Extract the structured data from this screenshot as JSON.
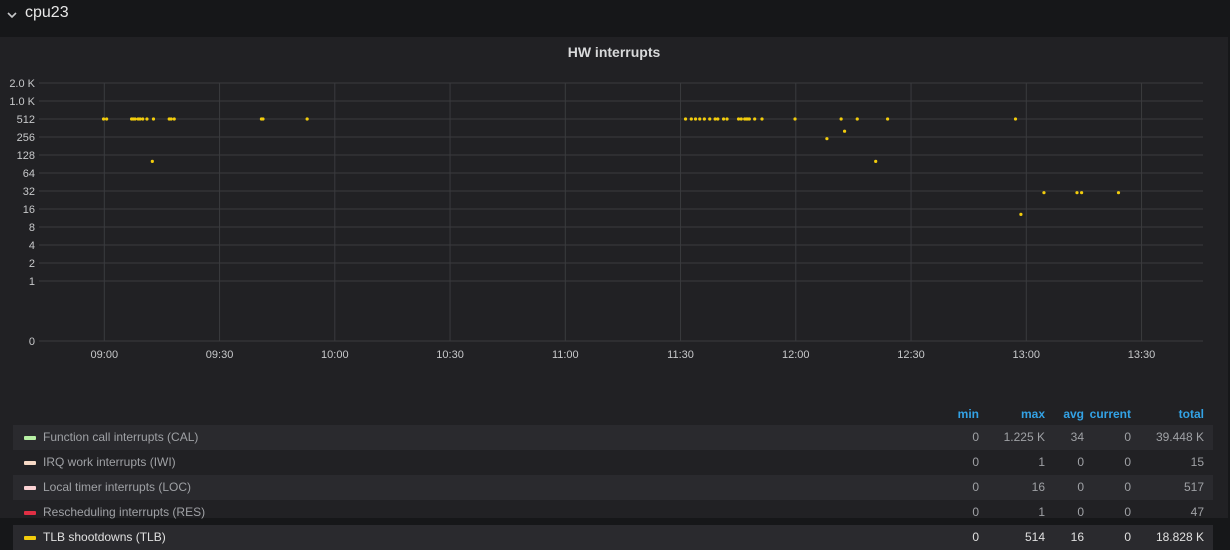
{
  "row": {
    "title": "cpu23"
  },
  "panel": {
    "title": "HW interrupts"
  },
  "colors": {
    "background": "#161719",
    "panel": "#212124",
    "grid": "#3a3b3e",
    "tlb": "#f2cc0c",
    "legend_header": "#33a2e5"
  },
  "chart_data": {
    "type": "scatter",
    "title": "HW interrupts",
    "y_scale": "log2",
    "y_tick_labels": [
      "0",
      "1",
      "2",
      "4",
      "8",
      "16",
      "32",
      "64",
      "128",
      "256",
      "512",
      "1.0 K",
      "2.0 K"
    ],
    "y_tick_values": [
      0,
      1,
      2,
      4,
      8,
      16,
      32,
      64,
      128,
      256,
      512,
      1024,
      2048
    ],
    "x_tick_labels": [
      "09:00",
      "09:30",
      "10:00",
      "10:30",
      "11:00",
      "11:30",
      "12:00",
      "12:30",
      "13:00",
      "13:30"
    ],
    "x_range_minutes": [
      523,
      826
    ],
    "series": [
      {
        "name": "TLB shootdowns (TLB)",
        "color": "#f2cc0c",
        "points": [
          [
            539.8,
            512
          ],
          [
            540.6,
            512
          ],
          [
            547.1,
            512
          ],
          [
            547.5,
            512
          ],
          [
            548.0,
            512
          ],
          [
            548.8,
            512
          ],
          [
            549.3,
            512
          ],
          [
            550.0,
            512
          ],
          [
            551.1,
            512
          ],
          [
            552.8,
            512
          ],
          [
            556.9,
            512
          ],
          [
            557.4,
            512
          ],
          [
            558.2,
            512
          ],
          [
            552.5,
            100
          ],
          [
            580.9,
            512
          ],
          [
            581.3,
            512
          ],
          [
            592.8,
            512
          ],
          [
            691.3,
            512
          ],
          [
            692.8,
            512
          ],
          [
            693.9,
            512
          ],
          [
            695.0,
            512
          ],
          [
            696.2,
            512
          ],
          [
            697.6,
            512
          ],
          [
            699.0,
            512
          ],
          [
            699.7,
            512
          ],
          [
            701.2,
            512
          ],
          [
            702.1,
            512
          ],
          [
            705.1,
            512
          ],
          [
            705.8,
            512
          ],
          [
            706.7,
            512
          ],
          [
            707.1,
            512
          ],
          [
            707.5,
            512
          ],
          [
            707.9,
            512
          ],
          [
            709.3,
            512
          ],
          [
            711.2,
            512
          ],
          [
            719.8,
            512
          ],
          [
            736.0,
            512
          ],
          [
            743.9,
            512
          ],
          [
            728.1,
            240
          ],
          [
            732.7,
            320
          ],
          [
            731.8,
            512
          ],
          [
            740.8,
            100
          ],
          [
            777.2,
            512
          ],
          [
            778.6,
            13
          ],
          [
            784.6,
            30
          ],
          [
            793.2,
            30
          ],
          [
            794.4,
            30
          ],
          [
            804.0,
            30
          ]
        ]
      }
    ],
    "legend_columns": [
      "min",
      "max",
      "avg",
      "current",
      "total"
    ],
    "legend": [
      {
        "name": "Function call interrupts (CAL)",
        "color": "#b7f0a4",
        "min": "0",
        "max": "1.225 K",
        "avg": "34",
        "current": "0",
        "total": "39.448 K"
      },
      {
        "name": "IRQ work interrupts (IWI)",
        "color": "#f5d8c5",
        "min": "0",
        "max": "1",
        "avg": "0",
        "current": "0",
        "total": "15"
      },
      {
        "name": "Local timer interrupts (LOC)",
        "color": "#fbd2d4",
        "min": "0",
        "max": "16",
        "avg": "0",
        "current": "0",
        "total": "517"
      },
      {
        "name": "Rescheduling interrupts (RES)",
        "color": "#e02f44",
        "min": "0",
        "max": "1",
        "avg": "0",
        "current": "0",
        "total": "47"
      },
      {
        "name": "TLB shootdowns (TLB)",
        "color": "#f2cc0c",
        "min": "0",
        "max": "514",
        "avg": "16",
        "current": "0",
        "total": "18.828 K"
      }
    ]
  }
}
